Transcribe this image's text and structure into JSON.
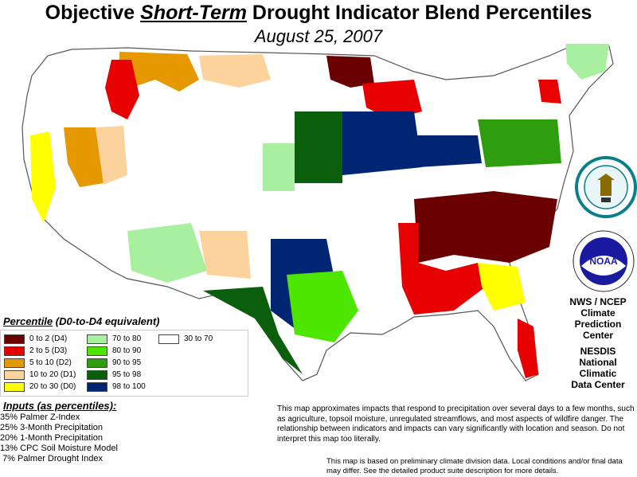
{
  "title": {
    "prefix": "Objective",
    "emphasis": "Short-Term",
    "suffix": "Drought Indicator Blend Percentiles"
  },
  "date": "August 25, 2007",
  "legend": {
    "title_prefix": "Percentile",
    "title_suffix": "(D0-to-D4 equivalent)",
    "items": [
      {
        "label": "0 to 2  (D4)",
        "color": "#6b0000"
      },
      {
        "label": "2 to 5  (D3)",
        "color": "#e60000"
      },
      {
        "label": "5 to 10  (D2)",
        "color": "#e69800"
      },
      {
        "label": "10 to 20  (D1)",
        "color": "#fcd39d"
      },
      {
        "label": "20 to 30  (D0)",
        "color": "#ffff00"
      },
      {
        "label": "70 to 80",
        "color": "#a8f0a0"
      },
      {
        "label": "80 to 90",
        "color": "#4ce600"
      },
      {
        "label": "90 to 95",
        "color": "#2e9e0e"
      },
      {
        "label": "95 to 98",
        "color": "#0b5e0b"
      },
      {
        "label": "98 to 100",
        "color": "#002673"
      },
      {
        "label": "30 to 70",
        "color": "#ffffff"
      }
    ]
  },
  "inputs": {
    "title": "Inputs (as percentiles):",
    "rows": [
      {
        "pct": "35%",
        "name": "Palmer Z-Index"
      },
      {
        "pct": "25%",
        "name": "3-Month Precipitation"
      },
      {
        "pct": "20%",
        "name": "1-Month Precipitation"
      },
      {
        "pct": "13%",
        "name": "CPC Soil Moisture Model"
      },
      {
        "pct": "7%",
        "name": "Palmer Drought Index"
      }
    ]
  },
  "note": "This map approximates impacts that respond to precipitation over several days to a few months, such as agriculture, topsoil moisture, unregulated streamflows, and most aspects of wildfire danger. The relationship between indicators and impacts can vary significantly with location and season. Do not interpret this map too literally.",
  "note2": "This map is based on preliminary climate division data. Local conditions and/or final data may differ. See the detailed product suite description for more details.",
  "credits": {
    "nws": [
      "NWS / NCEP",
      "Climate",
      "Prediction",
      "Center"
    ],
    "nesdis": [
      "NESDIS",
      "National",
      "Climatic",
      "Data Center"
    ]
  },
  "logos": {
    "commerce": "Department of Commerce seal",
    "noaa": "NOAA"
  }
}
